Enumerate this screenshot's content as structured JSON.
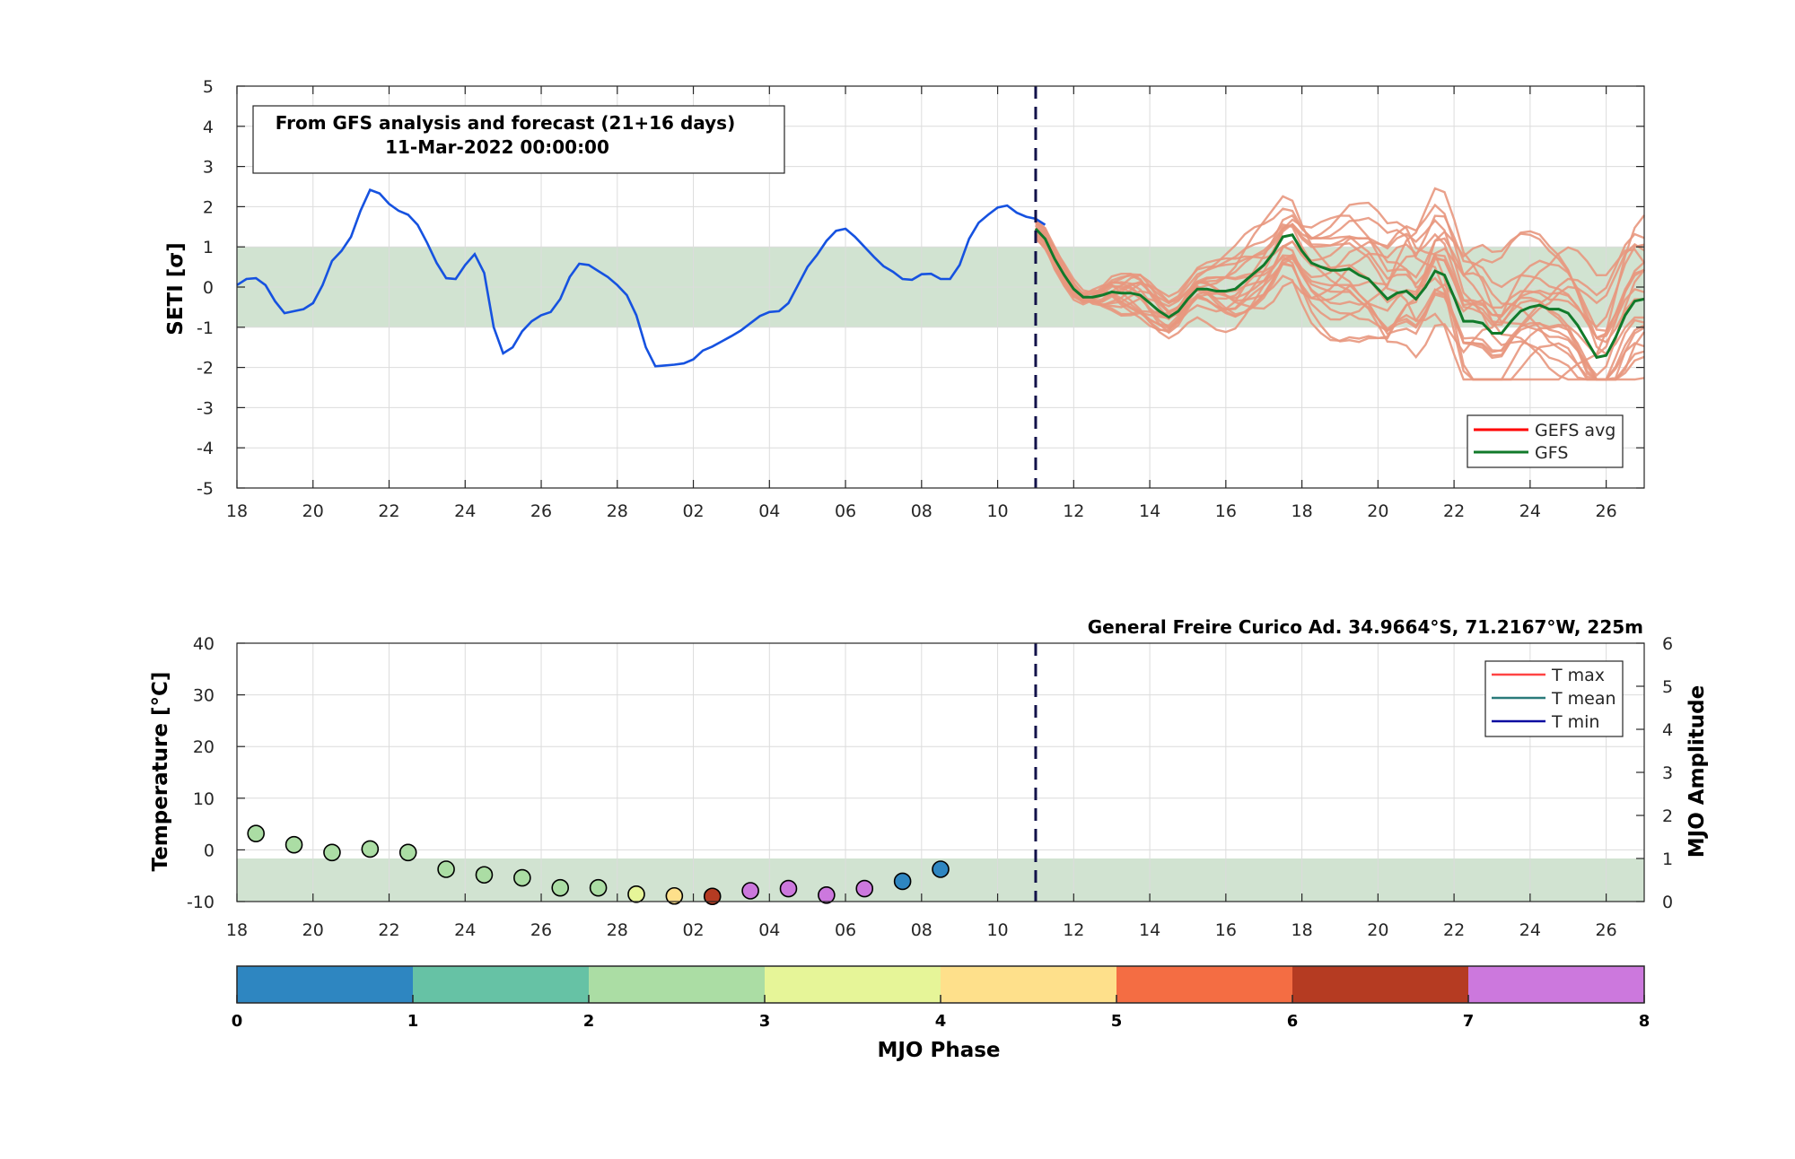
{
  "chart_data": [
    {
      "type": "line",
      "panel": "top",
      "ylabel": "SETI [σ]",
      "ylim": [
        -5,
        5
      ],
      "yticks": [
        5,
        4,
        3,
        2,
        1,
        0,
        -1,
        -2,
        -3,
        -4,
        -5
      ],
      "x_axis_days": "2022-02-18 to 2022-03-27",
      "xtick_labels": [
        "18",
        "20",
        "22",
        "24",
        "26",
        "28",
        "02",
        "04",
        "06",
        "08",
        "10",
        "12",
        "14",
        "16",
        "18",
        "20",
        "22",
        "24",
        "26"
      ],
      "annotation": {
        "line1": "From GFS analysis and forecast (21+16 days)",
        "line2": "11-Mar-2022 00:00:00"
      },
      "forecast_start": "2022-03-11",
      "band": [
        -1,
        1
      ],
      "legend": {
        "placement": "bottom-right",
        "items": [
          {
            "label": "GEFS avg",
            "color": "#ff0000"
          },
          {
            "label": "GFS",
            "color": "#117a2a"
          }
        ]
      },
      "analysis": {
        "color": "#1652e0",
        "start": "2022-02-18",
        "step_days": 0.25,
        "values": [
          0.05,
          0.2,
          0.22,
          0.05,
          -0.35,
          -0.65,
          -0.6,
          -0.55,
          -0.4,
          0.05,
          0.65,
          0.9,
          1.25,
          1.9,
          2.42,
          2.33,
          2.07,
          1.9,
          1.8,
          1.55,
          1.1,
          0.6,
          0.22,
          0.2,
          0.55,
          0.82,
          0.35,
          -1.0,
          -1.65,
          -1.5,
          -1.1,
          -0.85,
          -0.7,
          -0.62,
          -0.3,
          0.25,
          0.58,
          0.55,
          0.4,
          0.25,
          0.05,
          -0.2,
          -0.7,
          -1.5,
          -1.97,
          -1.95,
          -1.93,
          -1.9,
          -1.8,
          -1.58,
          -1.48,
          -1.35,
          -1.22,
          -1.08,
          -0.9,
          -0.72,
          -0.62,
          -0.6,
          -0.4,
          0.05,
          0.5,
          0.8,
          1.15,
          1.4,
          1.45,
          1.25,
          1.0,
          0.75,
          0.52,
          0.38,
          0.2,
          0.18,
          0.32,
          0.33,
          0.2,
          0.2,
          0.55,
          1.2,
          1.6,
          1.8,
          1.98,
          2.03,
          1.85,
          1.75,
          1.7,
          1.55
        ]
      },
      "gfs": {
        "color": "#117a2a",
        "start": "2022-03-11",
        "step_days": 0.25,
        "values": [
          1.45,
          1.2,
          0.7,
          0.3,
          -0.05,
          -0.25,
          -0.25,
          -0.2,
          -0.12,
          -0.15,
          -0.15,
          -0.2,
          -0.4,
          -0.6,
          -0.75,
          -0.6,
          -0.3,
          -0.05,
          -0.05,
          -0.1,
          -0.1,
          -0.05,
          0.15,
          0.35,
          0.55,
          0.85,
          1.25,
          1.3,
          0.9,
          0.6,
          0.5,
          0.42,
          0.42,
          0.45,
          0.3,
          0.2,
          -0.05,
          -0.3,
          -0.15,
          -0.1,
          -0.3,
          0.0,
          0.4,
          0.3,
          -0.25,
          -0.85,
          -0.85,
          -0.9,
          -1.15,
          -1.15,
          -0.85,
          -0.6,
          -0.5,
          -0.45,
          -0.55,
          -0.55,
          -0.65,
          -0.95,
          -1.35,
          -1.75,
          -1.7,
          -1.25,
          -0.7,
          -0.35,
          -0.3
        ]
      },
      "gefs_members": {
        "color": "#e8977e",
        "count": 20,
        "start": "2022-03-11",
        "step_days": 0.25,
        "range_note": "spread roughly between -2.3 and 2.5"
      }
    },
    {
      "type": "scatter",
      "panel": "bottom",
      "title": "General Freire Curico Ad. 34.9664°S, 71.2167°W, 225m",
      "ylabel": "Temperature [°C]",
      "ylabel_right": "MJO Amplitude",
      "ylim": [
        -10,
        40
      ],
      "yticks": [
        40,
        30,
        20,
        10,
        0,
        -10
      ],
      "ylim_right": [
        0,
        6
      ],
      "yticks_right": [
        6,
        5,
        4,
        3,
        2,
        1,
        0
      ],
      "xtick_labels": [
        "18",
        "20",
        "22",
        "24",
        "26",
        "28",
        "02",
        "04",
        "06",
        "08",
        "10",
        "12",
        "14",
        "16",
        "18",
        "20",
        "22",
        "24",
        "26"
      ],
      "forecast_start": "2022-03-11",
      "band_right": [
        0,
        1
      ],
      "legend": {
        "placement": "top-right",
        "items": [
          {
            "label": "T max",
            "color": "#ff4444"
          },
          {
            "label": "T mean",
            "color": "#2a7a7a"
          },
          {
            "label": "T min",
            "color": "#0a0aa0"
          }
        ]
      },
      "mjo_points": [
        {
          "day": 0.5,
          "amplitude": 1.58,
          "phase": 2
        },
        {
          "day": 1.5,
          "amplitude": 1.32,
          "phase": 2
        },
        {
          "day": 2.5,
          "amplitude": 1.14,
          "phase": 2
        },
        {
          "day": 3.5,
          "amplitude": 1.22,
          "phase": 2
        },
        {
          "day": 4.5,
          "amplitude": 1.14,
          "phase": 2
        },
        {
          "day": 5.5,
          "amplitude": 0.75,
          "phase": 2
        },
        {
          "day": 6.5,
          "amplitude": 0.62,
          "phase": 2
        },
        {
          "day": 7.5,
          "amplitude": 0.55,
          "phase": 2
        },
        {
          "day": 8.5,
          "amplitude": 0.32,
          "phase": 2
        },
        {
          "day": 9.5,
          "amplitude": 0.32,
          "phase": 2
        },
        {
          "day": 10.5,
          "amplitude": 0.17,
          "phase": 3
        },
        {
          "day": 11.5,
          "amplitude": 0.13,
          "phase": 4
        },
        {
          "day": 12.5,
          "amplitude": 0.12,
          "phase": 6
        },
        {
          "day": 13.5,
          "amplitude": 0.25,
          "phase": 7
        },
        {
          "day": 14.5,
          "amplitude": 0.3,
          "phase": 7
        },
        {
          "day": 15.5,
          "amplitude": 0.15,
          "phase": 7
        },
        {
          "day": 16.5,
          "amplitude": 0.3,
          "phase": 7
        },
        {
          "day": 17.5,
          "amplitude": 0.47,
          "phase": 0
        },
        {
          "day": 18.5,
          "amplitude": 0.75,
          "phase": 0
        }
      ]
    }
  ],
  "colorbar": {
    "label": "MJO Phase",
    "tick_labels": [
      "0",
      "1",
      "2",
      "3",
      "4",
      "5",
      "6",
      "7",
      "8"
    ],
    "colors": [
      "#2e86c1",
      "#66c2a5",
      "#abdda4",
      "#e6f598",
      "#fee08b",
      "#f46d43",
      "#b53b22",
      "#cc78dd"
    ]
  },
  "colors": {
    "band": "#d1e3d1",
    "forecast_line": "#12124a"
  }
}
